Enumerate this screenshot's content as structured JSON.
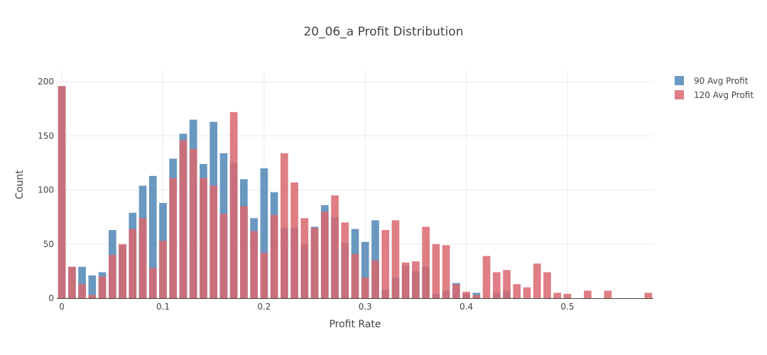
{
  "chart_data": {
    "type": "bar",
    "title": "20_06_a Profit Distribution",
    "xlabel": "Profit Rate",
    "ylabel": "Count",
    "barmode": "overlay",
    "xlim": [
      -0.005,
      0.585
    ],
    "ylim": [
      0,
      210
    ],
    "xticks": [
      0,
      0.1,
      0.2,
      0.3,
      0.4,
      0.5
    ],
    "xtick_labels": [
      "0",
      "0.1",
      "0.2",
      "0.3",
      "0.4",
      "0.5"
    ],
    "yticks": [
      0,
      50,
      100,
      150,
      200
    ],
    "ytick_labels": [
      "0",
      "50",
      "100",
      "150",
      "200"
    ],
    "grid": true,
    "legend_position": "top-right",
    "bin_width": 0.01,
    "x": [
      0,
      0.01,
      0.02,
      0.03,
      0.04,
      0.05,
      0.06,
      0.07,
      0.08,
      0.09,
      0.1,
      0.11,
      0.12,
      0.13,
      0.14,
      0.15,
      0.16,
      0.17,
      0.18,
      0.19,
      0.2,
      0.21,
      0.22,
      0.23,
      0.24,
      0.25,
      0.26,
      0.27,
      0.28,
      0.29,
      0.3,
      0.31,
      0.32,
      0.33,
      0.34,
      0.35,
      0.36,
      0.37,
      0.38,
      0.39,
      0.4,
      0.41,
      0.42,
      0.43,
      0.44,
      0.45,
      0.46,
      0.47,
      0.48,
      0.49,
      0.5,
      0.51,
      0.52,
      0.53,
      0.54,
      0.55,
      0.56,
      0.57,
      0.58
    ],
    "series": [
      {
        "name": "90 Avg Profit",
        "color": "#4f86b6",
        "values": [
          196,
          29,
          29,
          21,
          24,
          63,
          49,
          79,
          104,
          113,
          88,
          129,
          152,
          165,
          124,
          163,
          134,
          125,
          110,
          74,
          120,
          98,
          65,
          65,
          50,
          66,
          86,
          75,
          51,
          64,
          52,
          72,
          8,
          19,
          30,
          25,
          29,
          4,
          7,
          14,
          4,
          5,
          0,
          5,
          7,
          0,
          0,
          0,
          0,
          0,
          0,
          0,
          0,
          0,
          0,
          0,
          0,
          0,
          0
        ]
      },
      {
        "name": "120 Avg Profit",
        "color": "#d9676e",
        "values": [
          196,
          29,
          13,
          3,
          20,
          40,
          50,
          64,
          74,
          28,
          53,
          111,
          146,
          138,
          111,
          104,
          78,
          172,
          85,
          62,
          42,
          77,
          134,
          107,
          74,
          65,
          80,
          95,
          70,
          41,
          19,
          35,
          63,
          72,
          33,
          34,
          66,
          50,
          49,
          13,
          6,
          3,
          39,
          24,
          26,
          13,
          10,
          32,
          24,
          5,
          4,
          0,
          7,
          0,
          7,
          0,
          0,
          0,
          5
        ]
      }
    ]
  }
}
